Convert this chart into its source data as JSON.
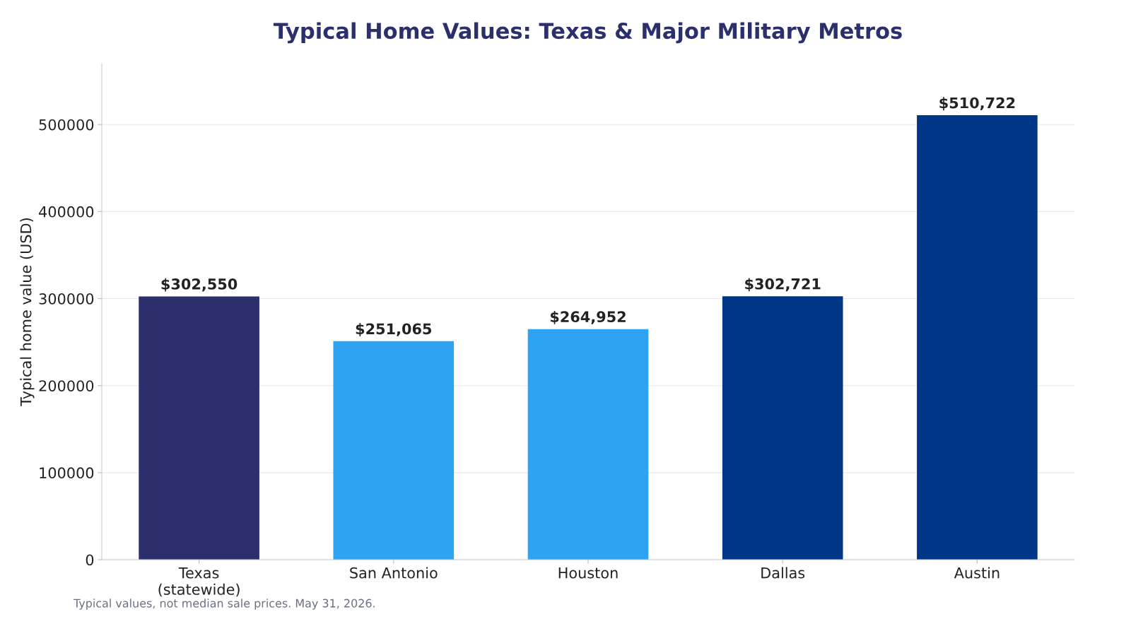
{
  "chart_data": {
    "type": "bar",
    "title": "Typical Home Values: Texas & Major Military Metros",
    "ylabel": "Typical home value (USD)",
    "categories": [
      "Texas\n(statewide)",
      "San Antonio",
      "Houston",
      "Dallas",
      "Austin"
    ],
    "values": [
      302550,
      251065,
      264952,
      302721,
      510722
    ],
    "colors": [
      "#2b2f6b",
      "#2ea3f2",
      "#2ea3f2",
      "#003687",
      "#003687"
    ],
    "value_labels": [
      "$302,550",
      "$251,065",
      "$264,952",
      "$302,721",
      "$510,722"
    ],
    "ylim": [
      0,
      570000
    ],
    "yticks": [
      0,
      100000,
      200000,
      300000,
      400000,
      500000
    ],
    "grid": "y",
    "annotations": [
      "Typical values, not median sale prices. May 31, 2026."
    ]
  }
}
